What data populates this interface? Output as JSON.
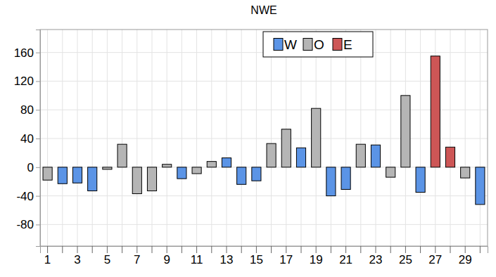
{
  "chart_data": {
    "type": "bar",
    "title": "NWE",
    "categories": [
      "1",
      null,
      "3",
      null,
      "5",
      null,
      "7",
      null,
      "9",
      null,
      "11",
      null,
      "13",
      null,
      "15",
      null,
      "17",
      null,
      "19",
      null,
      "21",
      null,
      "23",
      null,
      "25",
      null,
      "27",
      null,
      "29",
      null
    ],
    "series": [
      {
        "name": "W",
        "color": "#5b94e6",
        "values": [
          null,
          -23,
          -22,
          -33,
          null,
          null,
          null,
          null,
          null,
          -16,
          null,
          null,
          13,
          -24,
          -19,
          null,
          null,
          27,
          null,
          -40,
          -31,
          null,
          31,
          null,
          null,
          -35,
          null,
          null,
          null,
          -52
        ]
      },
      {
        "name": "O",
        "color": "#b5b5b5",
        "values": [
          -18,
          null,
          null,
          null,
          -3,
          32,
          -37,
          -33,
          4,
          null,
          -9,
          8,
          null,
          null,
          null,
          33,
          53,
          null,
          82,
          null,
          null,
          32,
          null,
          -14,
          100,
          null,
          null,
          null,
          -15,
          null
        ]
      },
      {
        "name": "E",
        "color": "#cd5656",
        "values": [
          null,
          null,
          null,
          null,
          null,
          null,
          null,
          null,
          null,
          null,
          null,
          null,
          null,
          null,
          null,
          null,
          null,
          null,
          null,
          null,
          null,
          null,
          null,
          null,
          null,
          null,
          155,
          28,
          null,
          null
        ]
      }
    ],
    "ylim": [
      -110,
      192
    ],
    "yticks": [
      -80,
      -40,
      0,
      40,
      80,
      120,
      160
    ],
    "grid": true,
    "legend": "top"
  }
}
